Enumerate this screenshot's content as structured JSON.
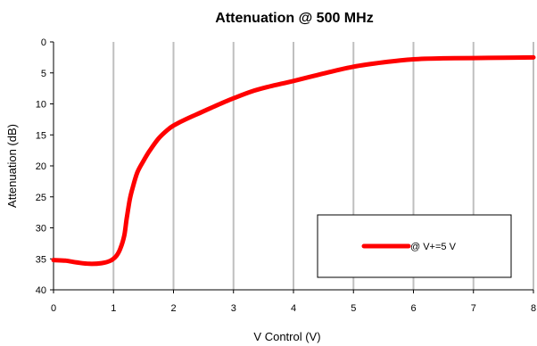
{
  "chart_data": {
    "type": "line",
    "title": "Attenuation @ 500 MHz",
    "xlabel": "V Control  (V)",
    "ylabel": "Attenuation (dB)",
    "xlim": [
      0,
      8
    ],
    "ylim": [
      0,
      40
    ],
    "y_inverted": true,
    "xticks": [
      0,
      1,
      2,
      3,
      4,
      5,
      6,
      7,
      8
    ],
    "yticks": [
      0,
      5,
      10,
      15,
      20,
      25,
      30,
      35,
      40
    ],
    "grid": "vertical",
    "legend_position": "lower-right",
    "colors": {
      "series": "#ff0000",
      "grid": "#bfbfbf",
      "axis": "#000000"
    },
    "series": [
      {
        "name": "@ V+=5 V",
        "x": [
          0,
          0.2,
          0.4,
          0.6,
          0.8,
          0.95,
          1.05,
          1.12,
          1.18,
          1.22,
          1.27,
          1.32,
          1.4,
          1.5,
          1.6,
          1.75,
          1.9,
          2.0,
          2.2,
          2.5,
          2.8,
          3.0,
          3.3,
          3.6,
          4.0,
          4.5,
          5.0,
          5.5,
          6.0,
          6.5,
          7.0,
          7.5,
          8.0
        ],
        "y": [
          35.2,
          35.3,
          35.6,
          35.8,
          35.7,
          35.3,
          34.5,
          33.2,
          31.2,
          28.5,
          25.5,
          23.5,
          21.0,
          19.2,
          17.6,
          15.6,
          14.2,
          13.5,
          12.5,
          11.2,
          9.9,
          9.1,
          8.0,
          7.2,
          6.3,
          5.1,
          4.0,
          3.3,
          2.8,
          2.65,
          2.6,
          2.55,
          2.5
        ]
      }
    ]
  }
}
